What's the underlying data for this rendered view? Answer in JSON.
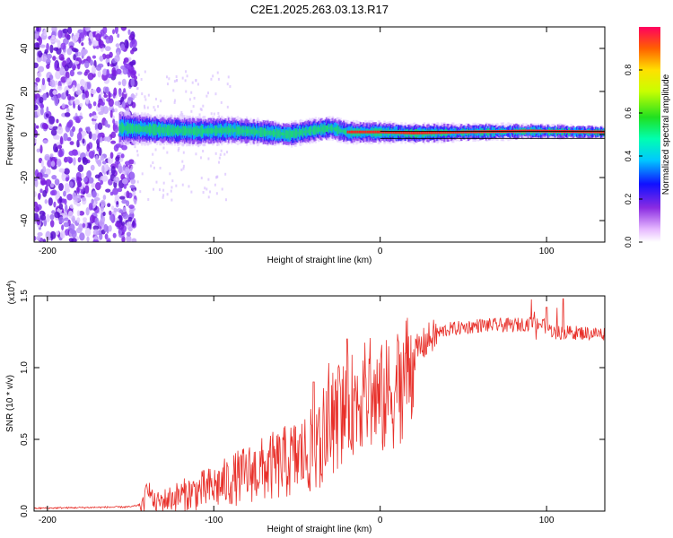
{
  "figure_title": "C2E1.2025.263.03.13.R17",
  "colors": {
    "snr_line": "#e8302a",
    "ridge": "#ff2020",
    "axis": "#000000"
  },
  "chart_data": [
    {
      "type": "heatmap",
      "xlabel": "Height of straight line (km)",
      "ylabel": "Frequency (Hz)",
      "xlim": [
        -208,
        135
      ],
      "ylim": [
        -50,
        50
      ],
      "x_ticks": [
        -200,
        -100,
        0,
        100
      ],
      "y_ticks": [
        -40,
        -20,
        0,
        20,
        40
      ],
      "x_tick_labels": [
        "-200",
        "-100",
        "0",
        "100"
      ],
      "y_tick_labels": [
        "-40",
        "-20",
        "0",
        "20",
        "40"
      ],
      "colorbar": {
        "label": "Normalized spectral amplitude",
        "range": [
          0,
          1
        ],
        "ticks": [
          0,
          0.2,
          0.4,
          0.6,
          0.8
        ],
        "tick_labels": [
          "0.0",
          "0.2",
          "0.4",
          "0.6",
          "0.8"
        ]
      },
      "description_points": {
        "ridge_center_hz": [
          [
            -155,
            3
          ],
          [
            -130,
            2
          ],
          [
            -110,
            1.5
          ],
          [
            -90,
            2
          ],
          [
            -70,
            1
          ],
          [
            -55,
            0
          ],
          [
            -40,
            2
          ],
          [
            -30,
            3
          ],
          [
            -20,
            1
          ],
          [
            -10,
            1
          ],
          [
            0,
            1
          ],
          [
            20,
            0.5
          ],
          [
            50,
            1
          ],
          [
            90,
            1.5
          ],
          [
            135,
            1
          ]
        ],
        "noise_region_km": [
          -208,
          -150
        ]
      }
    },
    {
      "type": "line",
      "xlabel": "Height of straight line (km)",
      "ylabel": "SNR (10 * v/v)",
      "y_multiplier_label": "(x10",
      "y_multiplier_exp": "4",
      "y_multiplier_close": ")",
      "xlim": [
        -208,
        135
      ],
      "ylim": [
        0,
        1.5
      ],
      "x_ticks": [
        -200,
        -100,
        0,
        100
      ],
      "y_ticks": [
        0,
        0.5,
        1.0,
        1.5
      ],
      "x_tick_labels": [
        "-200",
        "-100",
        "0",
        "100"
      ],
      "y_tick_labels": [
        "0.0",
        "0.5",
        "1.0",
        "1.5"
      ],
      "series": [
        {
          "name": "SNR",
          "envelope": [
            [
              -208,
              0.02
            ],
            [
              -150,
              0.03
            ],
            [
              -142,
              0.05
            ],
            [
              -140,
              0.2
            ],
            [
              -136,
              0.06
            ],
            [
              -120,
              0.12
            ],
            [
              -100,
              0.18
            ],
            [
              -80,
              0.28
            ],
            [
              -60,
              0.35
            ],
            [
              -40,
              0.45
            ],
            [
              -30,
              0.6
            ],
            [
              -20,
              0.75
            ],
            [
              -10,
              0.85
            ],
            [
              0,
              0.8
            ],
            [
              10,
              0.9
            ],
            [
              20,
              1.1
            ],
            [
              30,
              1.22
            ],
            [
              40,
              1.27
            ],
            [
              60,
              1.3
            ],
            [
              80,
              1.3
            ],
            [
              95,
              1.32
            ],
            [
              105,
              1.25
            ],
            [
              115,
              1.25
            ],
            [
              135,
              1.24
            ]
          ],
          "spike_peaks": [
            [
              -20,
              1.2
            ],
            [
              -10,
              1.05
            ],
            [
              -25,
              1.0
            ],
            [
              -40,
              0.9
            ],
            [
              15,
              1.1
            ],
            [
              100,
              1.42
            ],
            [
              110,
              1.48
            ],
            [
              90,
              1.35
            ]
          ]
        }
      ]
    }
  ]
}
